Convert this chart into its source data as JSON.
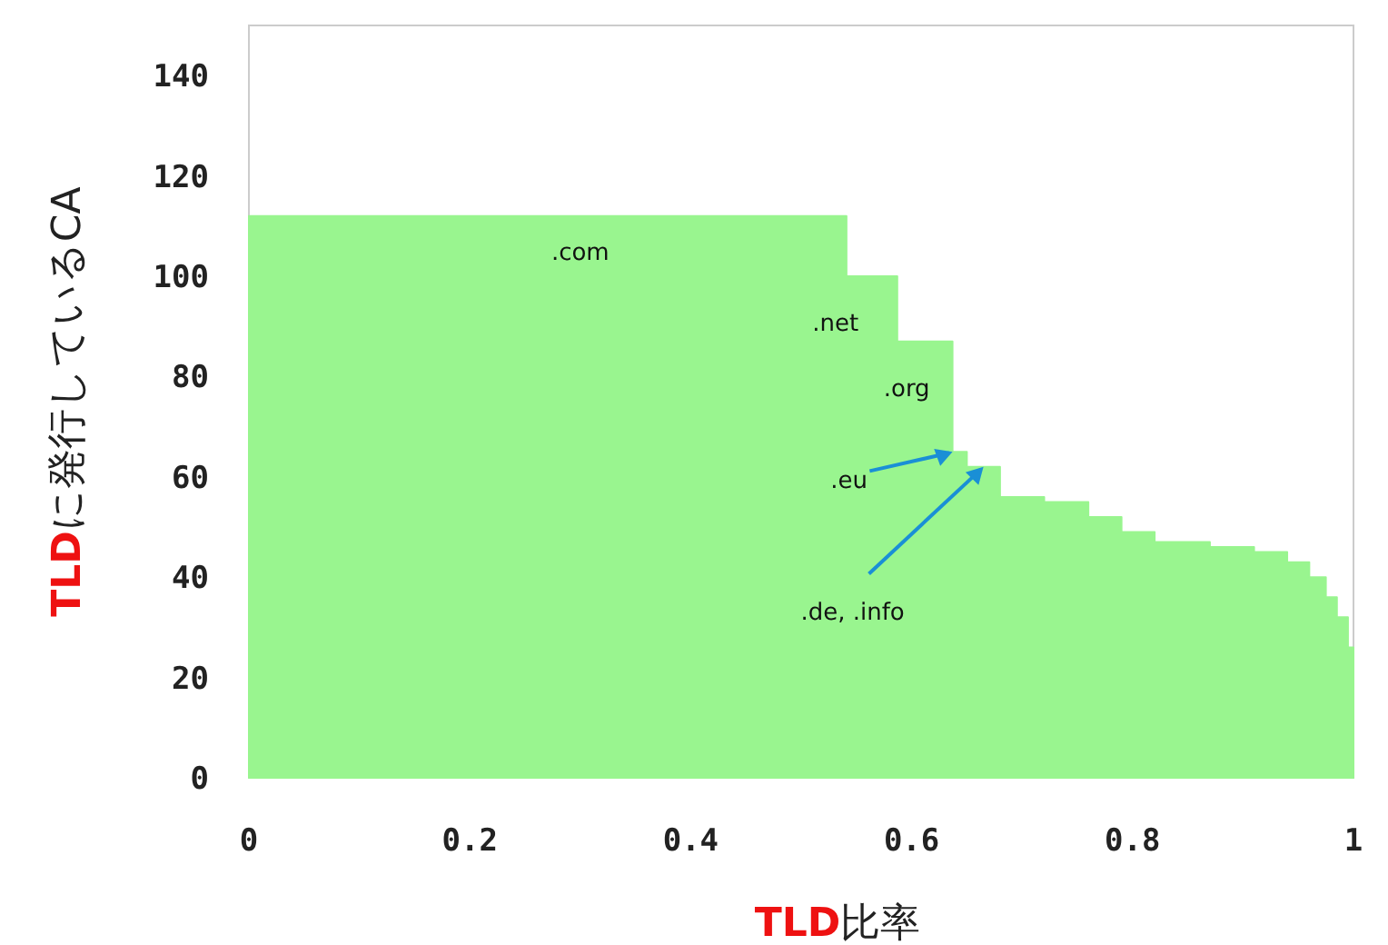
{
  "chart_data": {
    "type": "area",
    "xlabel": "TLD比率",
    "ylabel": "TLDに発行しているCA",
    "xlim": [
      0,
      1
    ],
    "ylim": [
      0,
      150
    ],
    "xticks": [
      0,
      0.2,
      0.4,
      0.6,
      0.8,
      1
    ],
    "yticks": [
      0,
      20,
      40,
      60,
      80,
      100,
      120,
      140
    ],
    "grid": false,
    "series": [
      {
        "color": "#99f58f",
        "x": [
          0,
          0.541,
          0.541,
          0.587,
          0.587,
          0.637,
          0.637,
          0.65,
          0.65,
          0.68,
          0.68,
          0.72,
          0.72,
          0.76,
          0.76,
          0.79,
          0.79,
          0.82,
          0.82,
          0.87,
          0.87,
          0.91,
          0.91,
          0.94,
          0.94,
          0.96,
          0.96,
          0.975,
          0.975,
          0.985,
          0.985,
          0.995,
          0.995,
          1
        ],
        "values": [
          112,
          112,
          100,
          100,
          87,
          87,
          65,
          65,
          62,
          62,
          56,
          56,
          55,
          55,
          52,
          52,
          49,
          49,
          47,
          47,
          46,
          46,
          45,
          45,
          43,
          43,
          40,
          40,
          36,
          36,
          32,
          32,
          26,
          26
        ]
      }
    ],
    "annotations": [
      {
        "text": ".com",
        "x": 0.3,
        "y": 112
      },
      {
        "text": ".net",
        "x": 0.564,
        "y": 100
      },
      {
        "text": ".org",
        "x": 0.612,
        "y": 87
      },
      {
        "text": ".eu",
        "x": 0.637,
        "y": 65
      },
      {
        "text": ".de, .info",
        "x": 0.665,
        "y": 62
      }
    ]
  }
}
